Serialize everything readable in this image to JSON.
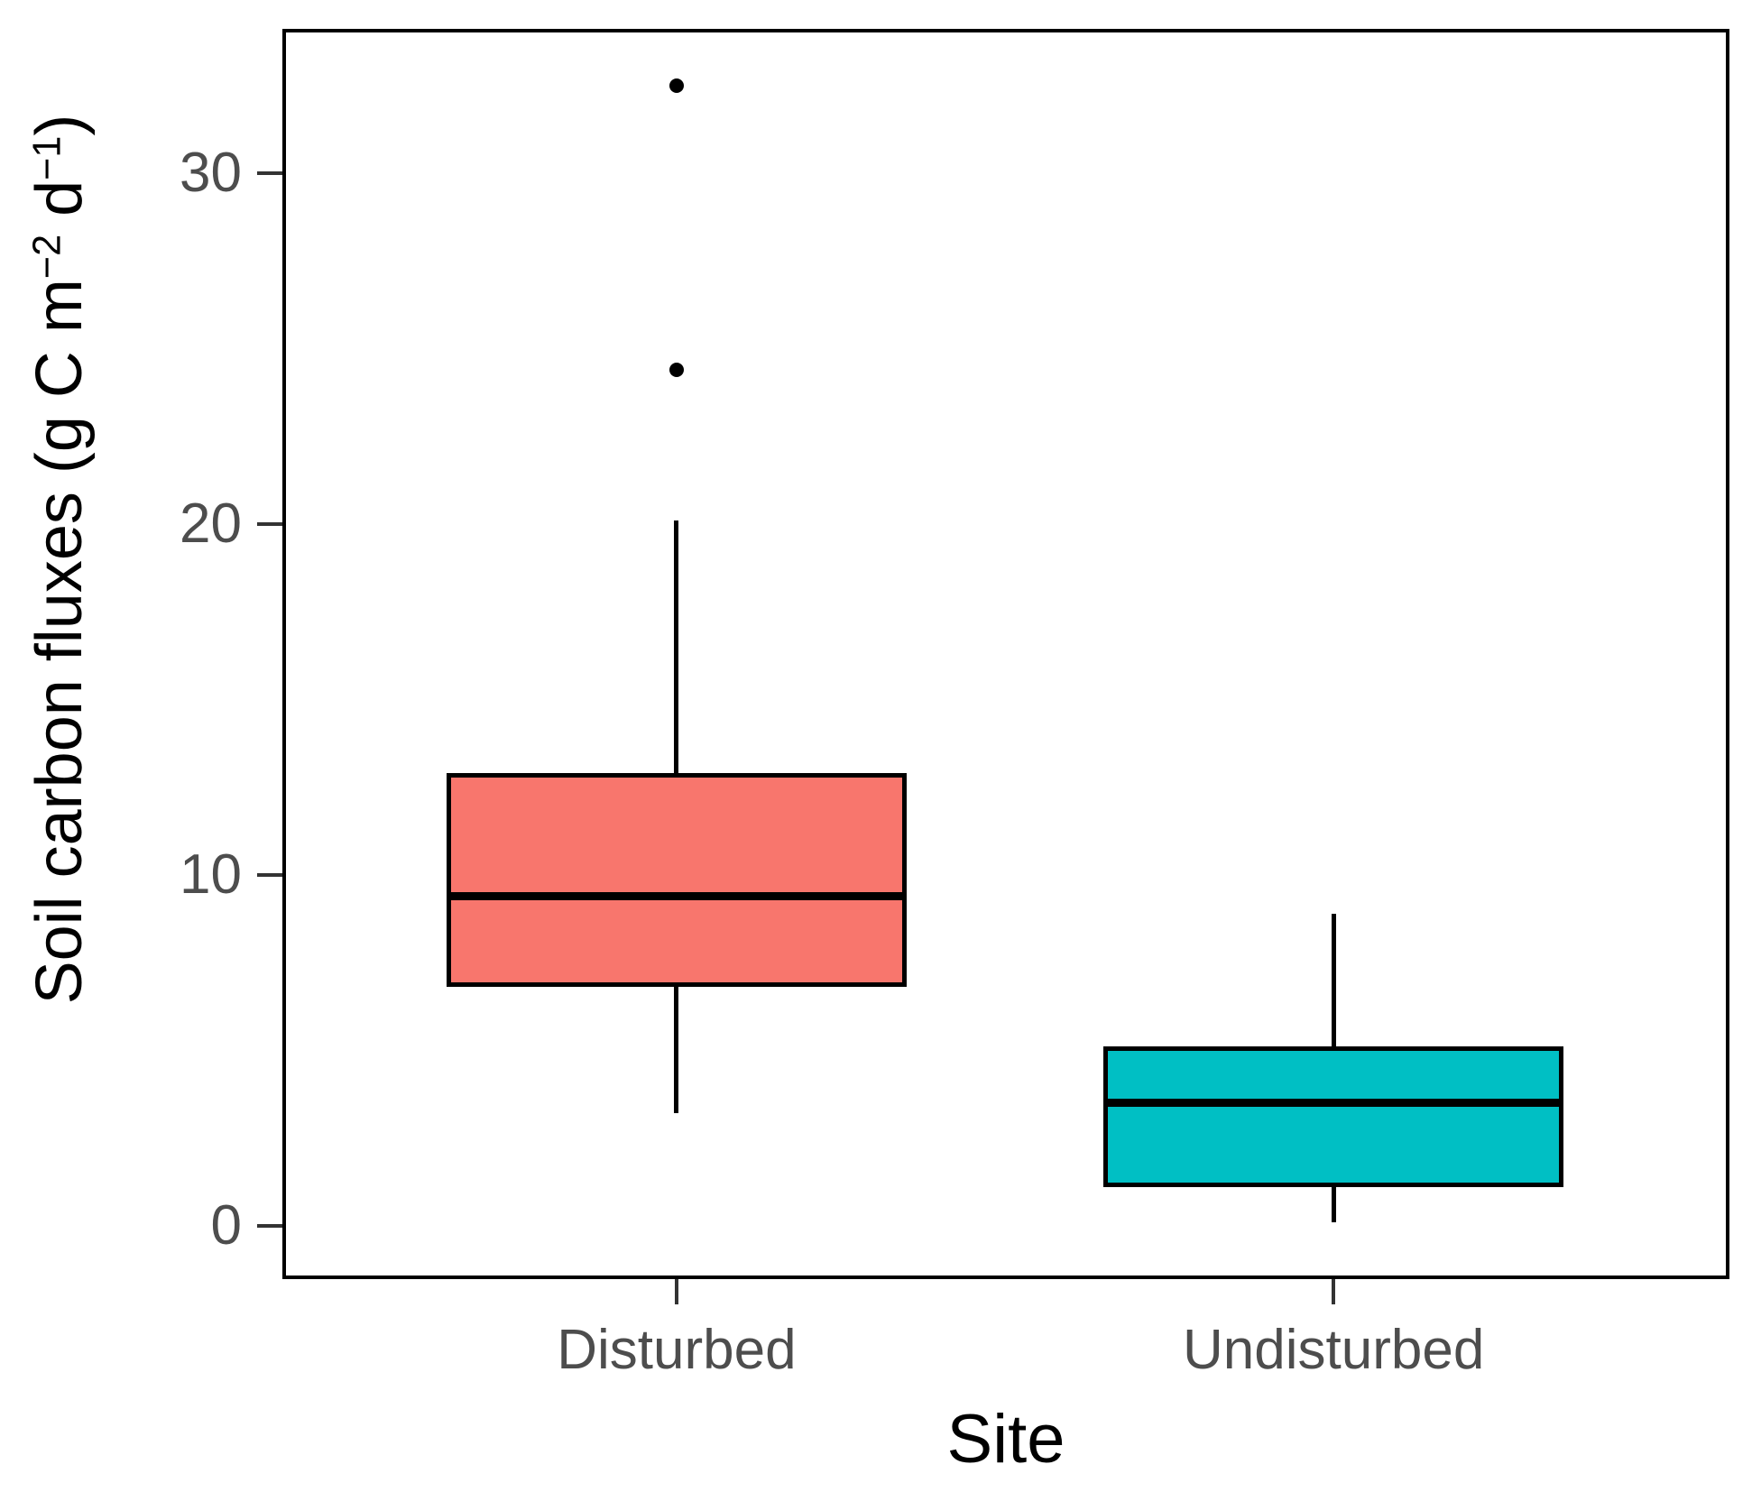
{
  "figure": {
    "y_title_parts": {
      "prefix": "Soil carbon fluxes (g C m",
      "sup1": "−2",
      "mid": " d",
      "sup2": "−1",
      "suffix": ")"
    }
  },
  "chart_data": {
    "type": "box",
    "title": "",
    "xlabel": "Site",
    "ylabel": "Soil carbon fluxes (g C m⁻² d⁻¹)",
    "categories": [
      "Disturbed",
      "Undisturbed"
    ],
    "yticks": [
      0,
      10,
      20,
      30
    ],
    "ylim": [
      -1.52,
      34.11
    ],
    "grid": false,
    "legend": "none",
    "axis_text_color": "#4d4d4d",
    "axis_title_color": "#000000",
    "series": [
      {
        "name": "Disturbed",
        "fill": "#F8766D",
        "whisker_low": 3.2,
        "q1": 6.8,
        "median": 9.4,
        "q3": 12.9,
        "whisker_high": 20.1,
        "outliers": [
          24.4,
          32.5
        ]
      },
      {
        "name": "Undisturbed",
        "fill": "#00BFC4",
        "whisker_low": 0.1,
        "q1": 1.1,
        "median": 3.5,
        "q3": 5.1,
        "whisker_high": 8.9,
        "outliers": []
      }
    ]
  }
}
